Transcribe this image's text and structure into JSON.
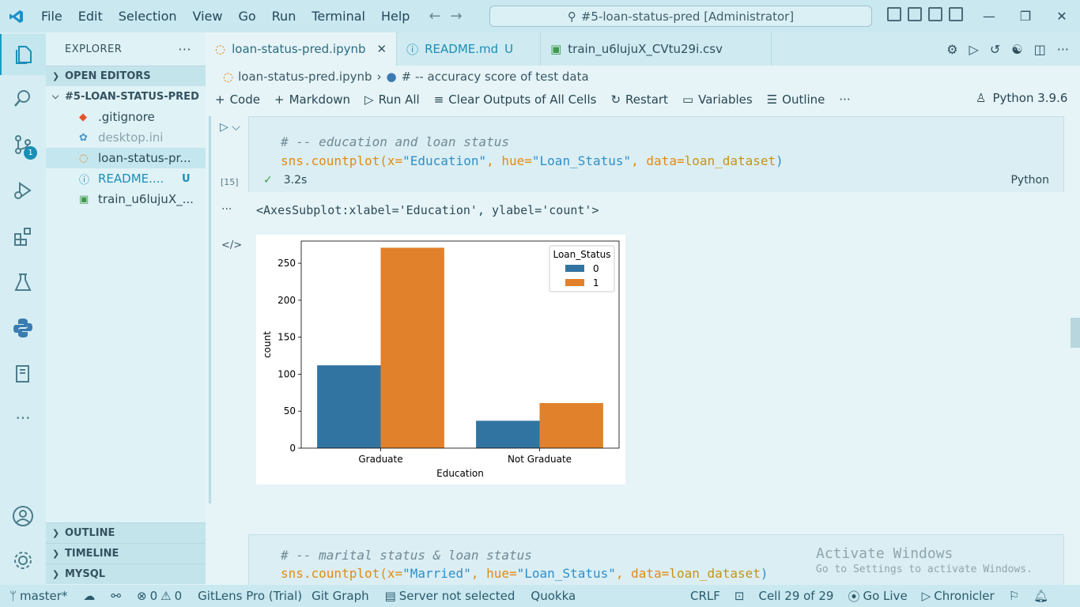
{
  "titlebar": {
    "menu": [
      "File",
      "Edit",
      "Selection",
      "View",
      "Go",
      "Run",
      "Terminal",
      "Help"
    ],
    "command_center": "#5-loan-status-pred [Administrator]"
  },
  "sidebar": {
    "title": "EXPLORER",
    "open_editors": "OPEN EDITORS",
    "folder": "#5-LOAN-STATUS-PRED",
    "files": [
      ".gitignore",
      "desktop.ini",
      "loan-status-pr...",
      "README....",
      "train_u6lujuX_..."
    ],
    "readme_status": "U",
    "outline": "OUTLINE",
    "timeline": "TIMELINE",
    "mysql": "MYSQL"
  },
  "activity": {
    "scm_badge": "1"
  },
  "tabs": [
    {
      "label": "loan-status-pred.ipynb"
    },
    {
      "label": "README.md",
      "status": "U"
    },
    {
      "label": "train_u6lujuX_CVtu29i.csv"
    }
  ],
  "breadcrumb": {
    "file": "loan-status-pred.ipynb",
    "symbol": "# -- accuracy score of test data"
  },
  "toolbar": {
    "code": "Code",
    "markdown": "Markdown",
    "run_all": "Run All",
    "clear_outputs": "Clear Outputs of All Cells",
    "restart": "Restart",
    "variables": "Variables",
    "outline": "Outline",
    "more": "···",
    "kernel": "Python 3.9.6"
  },
  "cell1": {
    "comment": "# -- education and loan status",
    "code_prefix": "sns.countplot(",
    "code_x_kw": "x=",
    "code_x_val": "\"Education\"",
    "code_hue_kw": " hue=",
    "code_hue_val": "\"Loan_Status\"",
    "code_data_kw": " data=",
    "code_data_val": "loan_dataset",
    "exec_count": "[15]",
    "exec_time": "3.2s",
    "language": "Python"
  },
  "output": {
    "text": "<AxesSubplot:xlabel='Education', ylabel='count'>",
    "ellipsis": "···"
  },
  "chart_data": {
    "type": "bar",
    "categories": [
      "Graduate",
      "Not Graduate"
    ],
    "series": [
      {
        "name": "0",
        "values": [
          112,
          37
        ],
        "color": "#3274a1"
      },
      {
        "name": "1",
        "values": [
          271,
          61
        ],
        "color": "#e1812c"
      }
    ],
    "legend_title": "Loan_Status",
    "legend_position": "top-right",
    "xlabel": "Education",
    "ylabel": "count",
    "ylim": [
      0,
      280
    ],
    "yticks": [
      0,
      50,
      100,
      150,
      200,
      250
    ]
  },
  "cell2": {
    "comment": "# -- marital status & loan status",
    "code_prefix": "sns.countplot(",
    "code_x_kw": "x=",
    "code_x_val": "\"Married\"",
    "code_hue_kw": " hue=",
    "code_hue_val": "\"Loan_Status\"",
    "code_data_kw": " data=",
    "code_data_val": "loan_dataset"
  },
  "watermark": {
    "line1": "Activate Windows",
    "line2": "Go to Settings to activate Windows."
  },
  "statusbar": {
    "branch": "master*",
    "problems": "0",
    "warnings": "0",
    "gitlens": "GitLens Pro (Trial)",
    "gitgraph": "Git Graph",
    "server": "Server not selected",
    "quokka": "Quokka",
    "eol": "CRLF",
    "cell": "Cell 29 of 29",
    "golive": "Go Live",
    "chronicler": "Chronicler"
  }
}
